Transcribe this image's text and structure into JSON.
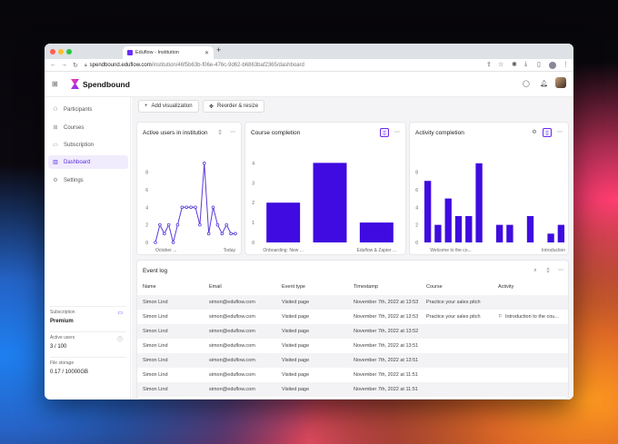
{
  "browser": {
    "tab_title": "Eduflow - Institution",
    "url_host": "spendbound.eduflow.com",
    "url_path": "/institution/46f5b63b-f06e-476c-9d62-b6863baf2365/dashboard"
  },
  "app": {
    "brand": "Spendbound"
  },
  "sidebar": {
    "items": [
      {
        "label": "Participants",
        "icon": "users-icon"
      },
      {
        "label": "Courses",
        "icon": "grid-icon"
      },
      {
        "label": "Subscription",
        "icon": "card-icon"
      },
      {
        "label": "Dashboard",
        "icon": "chart-icon"
      },
      {
        "label": "Settings",
        "icon": "gear-icon"
      }
    ],
    "subscription_label": "Subscription",
    "subscription_value": "Premium",
    "active_users_label": "Active users",
    "active_users_value": "3  /  100",
    "file_storage_label": "File storage",
    "file_storage_value": "0.17  /  10000GB"
  },
  "toolbar": {
    "add_label": "Add visualization",
    "reorder_label": "Reorder & resize"
  },
  "cards": {
    "active_users_title": "Active users in institution",
    "course_completion_title": "Course completion",
    "activity_completion_title": "Activity completion",
    "event_log_title": "Event log"
  },
  "colors": {
    "accent": "#4a10e8",
    "bar": "#3f0be0",
    "line": "#5b3ad9",
    "active_bg": "#f1ecfd"
  },
  "chart_data": [
    {
      "type": "line",
      "title": "Active users in institution",
      "x_tick_labels": [
        "October ...",
        "Today"
      ],
      "y_ticks": [
        0,
        2,
        4,
        6,
        8
      ],
      "ylim": [
        0,
        9.5
      ],
      "values": [
        0,
        2,
        1,
        2,
        0,
        2,
        4,
        4,
        4,
        4,
        2,
        9,
        1,
        4,
        2,
        1,
        2,
        1,
        1
      ]
    },
    {
      "type": "bar",
      "title": "Course completion",
      "categories": [
        "Onboarding: New ...",
        "",
        "Eduflow & Zapier ..."
      ],
      "values": [
        2,
        4,
        1
      ],
      "y_ticks": [
        0,
        1,
        2,
        3,
        4
      ],
      "ylim": [
        0,
        4.2
      ]
    },
    {
      "type": "bar",
      "title": "Activity completion",
      "x_tick_labels": [
        "Welcome to the co...",
        "Introduction"
      ],
      "values": [
        7,
        2,
        5,
        3,
        3,
        9,
        0,
        2,
        2,
        0,
        3,
        0,
        1,
        2
      ],
      "y_ticks": [
        0,
        2,
        4,
        6,
        8
      ],
      "ylim": [
        0,
        9.5
      ]
    }
  ],
  "event_log": {
    "columns": [
      "Name",
      "Email",
      "Event type",
      "Timestamp",
      "Course",
      "Activity"
    ],
    "rows": [
      {
        "name": "Simon Lind",
        "email": "simon@eduflow.com",
        "event": "Visited page",
        "timestamp": "November 7th, 2022 at 13:53",
        "course": "Practice your sales pitch",
        "activity": ""
      },
      {
        "name": "Simon Lind",
        "email": "simon@eduflow.com",
        "event": "Visited page",
        "timestamp": "November 7th, 2022 at 13:53",
        "course": "Practice your sales pitch",
        "activity": "Introduction to the cou..."
      },
      {
        "name": "Simon Lind",
        "email": "simon@eduflow.com",
        "event": "Visited page",
        "timestamp": "November 7th, 2022 at 13:52",
        "course": "",
        "activity": ""
      },
      {
        "name": "Simon Lind",
        "email": "simon@eduflow.com",
        "event": "Visited page",
        "timestamp": "November 7th, 2022 at 13:51",
        "course": "",
        "activity": ""
      },
      {
        "name": "Simon Lind",
        "email": "simon@eduflow.com",
        "event": "Visited page",
        "timestamp": "November 7th, 2022 at 13:51",
        "course": "",
        "activity": ""
      },
      {
        "name": "Simon Lind",
        "email": "simon@eduflow.com",
        "event": "Visited page",
        "timestamp": "November 7th, 2022 at 11:51",
        "course": "",
        "activity": ""
      },
      {
        "name": "Simon Lind",
        "email": "simon@eduflow.com",
        "event": "Visited page",
        "timestamp": "November 7th, 2022 at 11:51",
        "course": "",
        "activity": ""
      }
    ]
  }
}
